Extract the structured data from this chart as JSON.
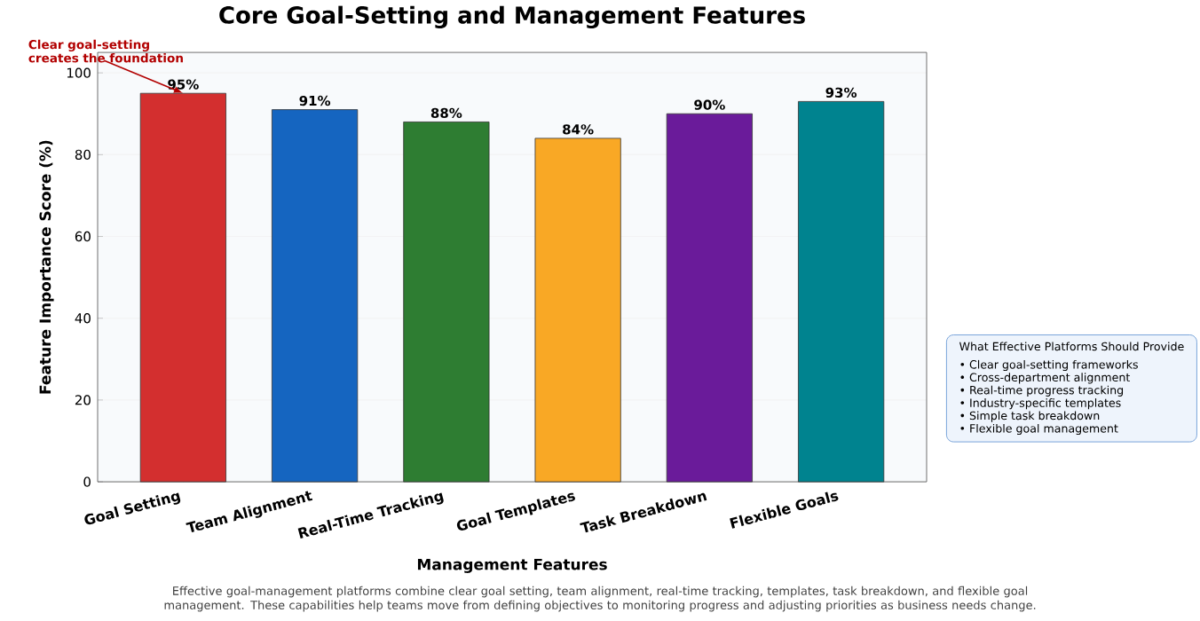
{
  "chart_data": {
    "type": "bar",
    "title": "Core Goal-Setting and Management Features",
    "xlabel": "Management Features",
    "ylabel": "Feature Importance Score (%)",
    "categories": [
      "Goal Setting",
      "Team Alignment",
      "Real-Time Tracking",
      "Goal Templates",
      "Task Breakdown",
      "Flexible Goals"
    ],
    "values": [
      95,
      91,
      88,
      84,
      90,
      93
    ],
    "value_labels": [
      "95%",
      "91%",
      "88%",
      "84%",
      "90%",
      "93%"
    ],
    "colors": [
      "#d32f2f",
      "#1565c0",
      "#2e7d32",
      "#f9a825",
      "#6a1b9a",
      "#00838f"
    ],
    "ylim": [
      0,
      105
    ],
    "yticks": [
      0,
      20,
      40,
      60,
      80,
      100
    ],
    "grid": "y",
    "annotations": [
      {
        "text": "Clear goal-setting creates the foundation",
        "x": "Goal Setting",
        "y": 95
      },
      "What Effective Platforms Should Provide",
      "• Clear goal-setting frameworks",
      "• Cross-department alignment",
      "• Real-time progress tracking",
      "• Industry-specific templates",
      "• Simple task breakdown",
      "• Flexible goal management",
      "Effective goal-management platforms combine clear goal setting, team alignment, real-time tracking, templates, task breakdown, and flexible goal management. These capabilities help teams move from defining objectives to monitoring progress and adjusting priorities as business needs change."
    ]
  }
}
